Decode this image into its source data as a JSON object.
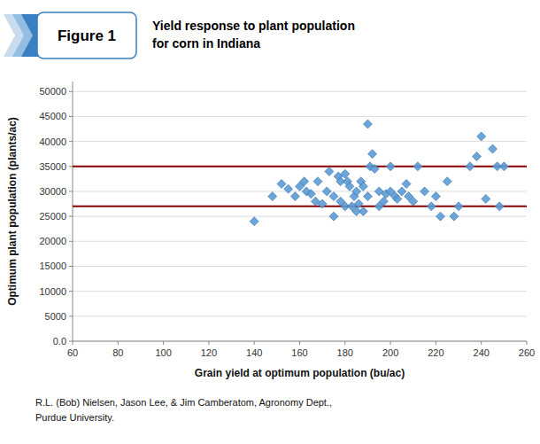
{
  "chart_data": {
    "type": "scatter",
    "figure_label": "Figure 1",
    "title": "Yield response to plant population",
    "subtitle": "for corn in Indiana",
    "x_label": "Grain yield at optimum population (bu/ac)",
    "y_label": "Optimum plant population (plants/ac)",
    "caption": [
      "R.L. (Bob) Nielsen, Jason Lee, & Jim Camberatom, Agronomy Dept.,",
      "Purdue University."
    ],
    "x": [
      140,
      148,
      152,
      155,
      158,
      160,
      162,
      163,
      165,
      167,
      168,
      170,
      172,
      173,
      175,
      175,
      177,
      178,
      178,
      180,
      180,
      181,
      182,
      183,
      184,
      185,
      185,
      186,
      187,
      188,
      188,
      190,
      190,
      191,
      192,
      193,
      195,
      195,
      197,
      198,
      200,
      200,
      202,
      203,
      205,
      207,
      208,
      210,
      212,
      215,
      218,
      220,
      222,
      225,
      228,
      230,
      235,
      238,
      240,
      242,
      245,
      247,
      248,
      250
    ],
    "values": [
      24000,
      29000,
      31500,
      30500,
      29000,
      31000,
      32000,
      30000,
      29500,
      28000,
      32000,
      27500,
      30000,
      34000,
      25000,
      29000,
      33000,
      32000,
      28000,
      27000,
      33500,
      32000,
      31000,
      27000,
      29000,
      30000,
      26000,
      27500,
      32000,
      31000,
      26000,
      29000,
      43500,
      35000,
      37500,
      34500,
      30000,
      27000,
      28000,
      29500,
      35000,
      30000,
      29000,
      28500,
      30000,
      31500,
      29000,
      28000,
      35000,
      30000,
      27000,
      29000,
      25000,
      32000,
      25000,
      27000,
      35000,
      37000,
      41000,
      28500,
      38500,
      35000,
      27000,
      35000
    ],
    "color": "#5B9BD5",
    "marker": "diamond",
    "reference_lines": [
      {
        "value": 27000,
        "color": "#8B0000"
      },
      {
        "value": 35000,
        "color": "#8B0000"
      }
    ],
    "xlim": [
      60,
      260
    ],
    "ylim": [
      0,
      52000
    ],
    "xticks": [
      60,
      80,
      100,
      120,
      140,
      160,
      180,
      200,
      220,
      240,
      260
    ],
    "yticks": [
      {
        "value": 0,
        "label": "0.0"
      },
      5000,
      10000,
      15000,
      20000,
      25000,
      30000,
      35000,
      40000,
      45000,
      50000
    ],
    "grid": true
  }
}
